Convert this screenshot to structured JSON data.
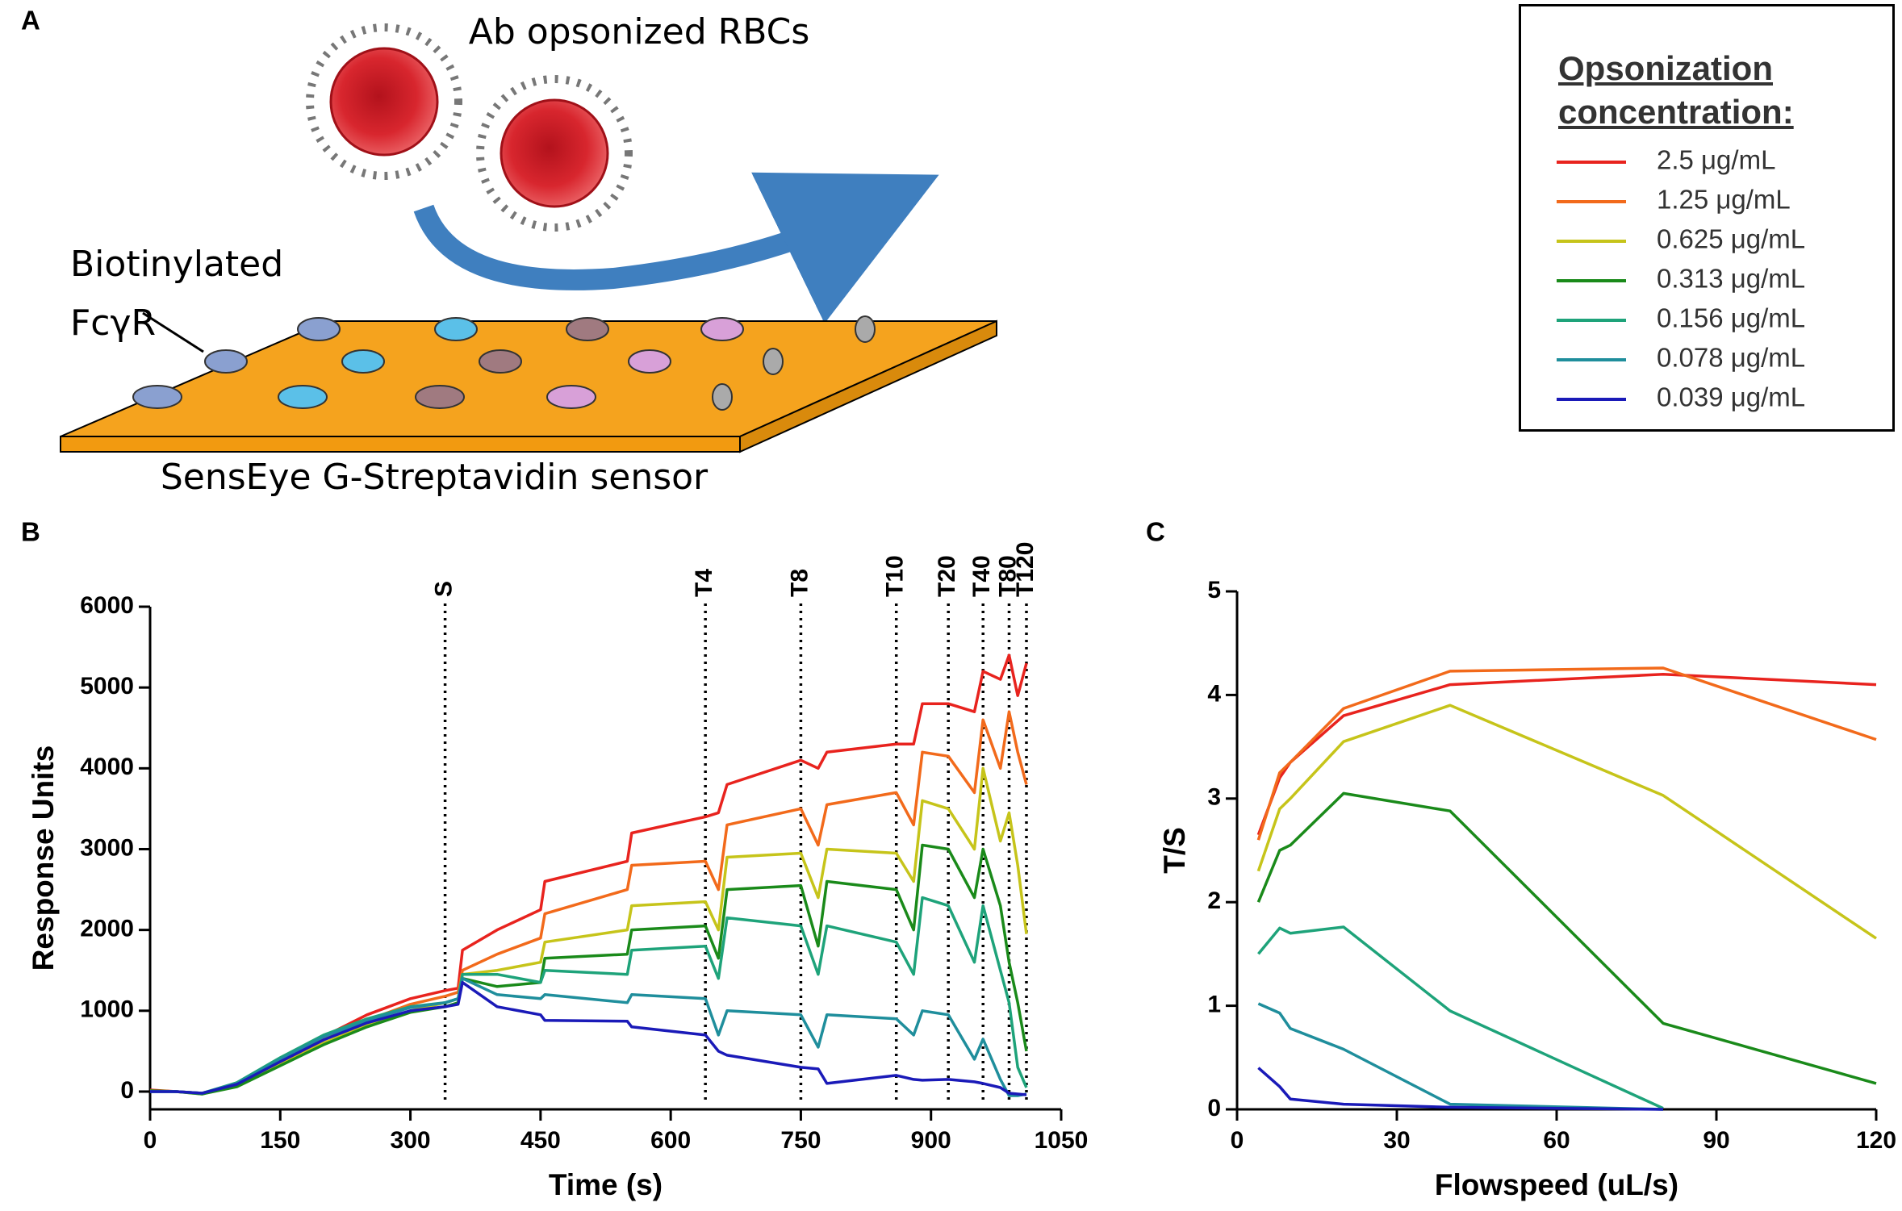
{
  "panel_labels": [
    "A",
    "B",
    "C"
  ],
  "diagram": {
    "title": "Ab opsonized RBCs",
    "receptor_label": [
      "Biotinylated",
      "FcγR"
    ],
    "sensor_label": "SensEye G-Streptavidin sensor"
  },
  "legend": {
    "title": "Opsonization concentration:"
  },
  "chart_data": [
    {
      "type": "line",
      "xlabel": "Time (s)",
      "ylabel": "Response Units",
      "xlim": [
        0,
        1050
      ],
      "xticks": [
        0,
        150,
        300,
        450,
        600,
        750,
        900,
        1050
      ],
      "ylim": [
        -220,
        6000
      ],
      "yticks": [
        0,
        1000,
        2000,
        3000,
        4000,
        5000,
        6000
      ],
      "markers": [
        {
          "label": "S",
          "x": 340
        },
        {
          "label": "T4",
          "x": 640
        },
        {
          "label": "T8",
          "x": 750
        },
        {
          "label": "T10",
          "x": 860
        },
        {
          "label": "T20",
          "x": 920
        },
        {
          "label": "T40",
          "x": 960
        },
        {
          "label": "T80",
          "x": 990
        },
        {
          "label": "T120",
          "x": 1010
        }
      ],
      "x": [
        0,
        30,
        60,
        100,
        150,
        200,
        250,
        300,
        340,
        355,
        360,
        400,
        450,
        455,
        550,
        555,
        640,
        655,
        665,
        750,
        770,
        780,
        860,
        880,
        890,
        920,
        950,
        960,
        980,
        990,
        1000,
        1010
      ],
      "series": [
        {
          "name": "2.5 μg/mL",
          "color": "#e8231e",
          "values": [
            20,
            0,
            -20,
            80,
            380,
            680,
            950,
            1150,
            1250,
            1280,
            1750,
            2000,
            2250,
            2600,
            2850,
            3200,
            3400,
            3450,
            3800,
            4100,
            4000,
            4200,
            4300,
            4300,
            4800,
            4800,
            4700,
            5200,
            5100,
            5400,
            4900,
            5300
          ]
        },
        {
          "name": "1.25 μg/mL",
          "color": "#f26a1b",
          "values": [
            10,
            0,
            -25,
            70,
            350,
            640,
            880,
            1080,
            1180,
            1230,
            1500,
            1700,
            1900,
            2200,
            2500,
            2800,
            2850,
            2500,
            3300,
            3500,
            3050,
            3550,
            3700,
            3300,
            4200,
            4150,
            3700,
            4600,
            4000,
            4700,
            4200,
            3800
          ]
        },
        {
          "name": "0.625 μg/mL",
          "color": "#c6c41a",
          "values": [
            10,
            0,
            -30,
            90,
            330,
            600,
            820,
            1000,
            1100,
            1150,
            1450,
            1500,
            1600,
            1850,
            2000,
            2300,
            2350,
            2000,
            2900,
            2950,
            2400,
            3000,
            2950,
            2600,
            3600,
            3500,
            3000,
            4000,
            3100,
            3450,
            2800,
            1950
          ]
        },
        {
          "name": "0.313 μg/mL",
          "color": "#1a8a1a",
          "values": [
            10,
            0,
            -30,
            60,
            320,
            580,
            800,
            980,
            1050,
            1100,
            1400,
            1300,
            1350,
            1650,
            1700,
            2000,
            2050,
            1650,
            2500,
            2550,
            1800,
            2600,
            2500,
            2000,
            3050,
            3000,
            2400,
            3000,
            2300,
            1600,
            1100,
            500
          ]
        },
        {
          "name": "0.156 μg/mL",
          "color": "#1ea37a",
          "values": [
            0,
            0,
            -20,
            110,
            420,
            700,
            900,
            1050,
            1100,
            1150,
            1450,
            1450,
            1350,
            1500,
            1450,
            1750,
            1800,
            1400,
            2150,
            2050,
            1450,
            2050,
            1850,
            1450,
            2400,
            2300,
            1600,
            2300,
            1500,
            1100,
            300,
            50
          ]
        },
        {
          "name": "0.078 μg/mL",
          "color": "#1f8e9c",
          "values": [
            0,
            0,
            -20,
            100,
            400,
            680,
            880,
            1040,
            1100,
            1150,
            1400,
            1200,
            1150,
            1200,
            1100,
            1200,
            1150,
            700,
            1000,
            950,
            550,
            950,
            900,
            700,
            1000,
            950,
            400,
            650,
            150,
            -50,
            -50,
            -30
          ]
        },
        {
          "name": "0.039 μg/mL",
          "color": "#1a1ab8",
          "values": [
            0,
            0,
            -20,
            90,
            370,
            640,
            850,
            1000,
            1050,
            1080,
            1350,
            1050,
            950,
            880,
            870,
            800,
            700,
            500,
            450,
            300,
            280,
            100,
            200,
            150,
            140,
            150,
            120,
            100,
            50,
            -20,
            -30,
            -40
          ]
        }
      ]
    },
    {
      "type": "line",
      "xlabel": "Flowspeed (uL/s)",
      "ylabel": "T/S",
      "xlim": [
        0,
        120
      ],
      "xticks": [
        0,
        30,
        60,
        90,
        120
      ],
      "ylim": [
        0,
        5
      ],
      "yticks": [
        0,
        1,
        2,
        3,
        4,
        5
      ],
      "x": [
        4,
        8,
        10,
        20,
        40,
        80,
        120
      ],
      "series": [
        {
          "color": "#e8231e",
          "values": [
            2.65,
            3.2,
            3.35,
            3.8,
            4.1,
            4.2,
            4.1
          ]
        },
        {
          "color": "#f26a1b",
          "values": [
            2.6,
            3.25,
            3.35,
            3.87,
            4.23,
            4.26,
            3.57
          ]
        },
        {
          "color": "#c6c41a",
          "values": [
            2.3,
            2.9,
            3.0,
            3.55,
            3.9,
            3.03,
            1.65
          ]
        },
        {
          "color": "#1a8a1a",
          "values": [
            2.0,
            2.5,
            2.55,
            3.05,
            2.88,
            0.83,
            0.25
          ]
        },
        {
          "color": "#1ea37a",
          "values": [
            1.5,
            1.75,
            1.7,
            1.76,
            0.95,
            0.01,
            null
          ]
        },
        {
          "color": "#1f8e9c",
          "values": [
            1.02,
            0.93,
            0.78,
            0.58,
            0.05,
            0.0,
            null
          ]
        },
        {
          "color": "#1a1ab8",
          "values": [
            0.4,
            0.22,
            0.1,
            0.05,
            0.02,
            0.0,
            null
          ]
        }
      ]
    }
  ]
}
